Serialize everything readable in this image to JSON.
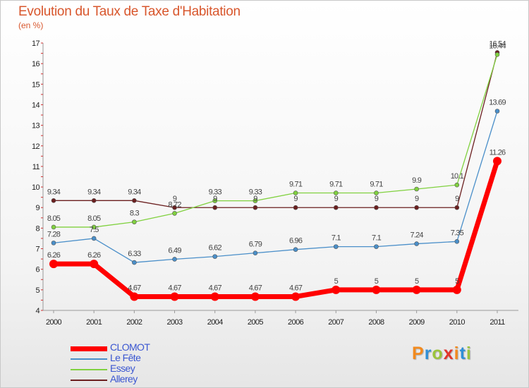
{
  "title": "Evolution du Taux de Taxe d'Habitation",
  "subtitle": "(en %)",
  "logo": {
    "text": "Proxiti",
    "letter_colors": [
      "#f28a1e",
      "#2f8fd6",
      "#9bc43c",
      "#e2352b",
      "#f28a1e",
      "#2f8fd6",
      "#9bc43c"
    ]
  },
  "chart_data": {
    "type": "line",
    "title": "Evolution du Taux de Taxe d'Habitation",
    "ylabel": "(en %)",
    "xlabel": "",
    "x": [
      "2000",
      "2001",
      "2002",
      "2003",
      "2004",
      "2005",
      "2006",
      "2007",
      "2008",
      "2009",
      "2010",
      "2011"
    ],
    "ylim": [
      4,
      17
    ],
    "yticks": [
      4,
      5,
      6,
      7,
      8,
      9,
      10,
      11,
      12,
      13,
      14,
      15,
      16,
      17
    ],
    "grid": false,
    "legend": "bottom-left",
    "series": [
      {
        "name": "CLOMOT",
        "color": "#ff0000",
        "values": [
          6.26,
          6.26,
          4.67,
          4.67,
          4.67,
          4.67,
          4.67,
          5,
          5,
          5,
          5,
          11.26
        ],
        "labels": [
          "6.26",
          "6.26",
          "4.67",
          "4.67",
          "4.67",
          "4.67",
          "4.67",
          "5",
          "5",
          "5",
          "5",
          "11.26"
        ]
      },
      {
        "name": "Le Fête",
        "color": "#4a8fc9",
        "values": [
          7.28,
          7.5,
          6.33,
          6.49,
          6.62,
          6.79,
          6.96,
          7.1,
          7.1,
          7.24,
          7.35,
          13.69
        ],
        "labels": [
          "7.28",
          "7.5",
          "6.33",
          "6.49",
          "6.62",
          "6.79",
          "6.96",
          "7.1",
          "7.1",
          "7.24",
          "7.35",
          "13.69"
        ]
      },
      {
        "name": "Essey",
        "color": "#80d13f",
        "values": [
          8.05,
          8.05,
          8.3,
          8.72,
          9.33,
          9.33,
          9.71,
          9.71,
          9.71,
          9.9,
          10.1,
          16.44
        ],
        "labels": [
          "8.05",
          "8.05",
          "8.3",
          "8.72",
          "9.33",
          "9.33",
          "9.71",
          "9.71",
          "9.71",
          "9.9",
          "10.1",
          "16.44"
        ]
      },
      {
        "name": "Allerey",
        "color": "#6b1f1f",
        "values": [
          9.34,
          9.34,
          9.34,
          9,
          9,
          9,
          9,
          9,
          9,
          9,
          9,
          16.54
        ],
        "labels": [
          "9.34",
          "9.34",
          "9.34",
          "9",
          "9",
          "9",
          "9",
          "9",
          "9",
          "9",
          "9",
          "16.54"
        ]
      }
    ]
  }
}
